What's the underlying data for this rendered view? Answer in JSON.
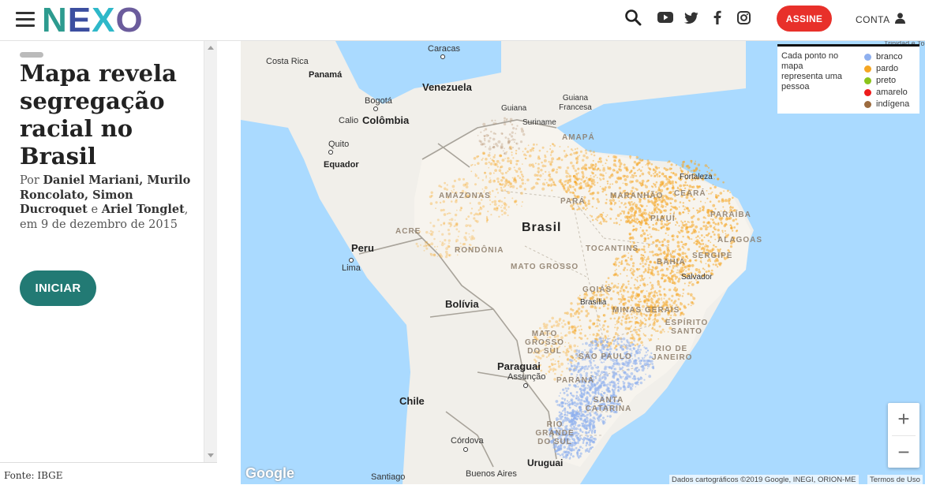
{
  "header": {
    "logo_letters": [
      "N",
      "E",
      "X",
      "O"
    ],
    "logo_colors": [
      "#2d9b8f",
      "#3c4fa0",
      "#2eb8c9",
      "#6b5c9c"
    ],
    "assine_label": "ASSINE",
    "conta_label": "CONTA",
    "icons": [
      "menu-icon",
      "search-icon",
      "youtube-icon",
      "twitter-icon",
      "facebook-icon",
      "instagram-icon",
      "user-icon"
    ]
  },
  "article": {
    "title": "Mapa revela segregação racial no Brasil",
    "byline_prefix": "Por ",
    "authors_1": "Daniel Mariani, Murilo Roncolato, Simon Ducroquet",
    "byline_and": " e ",
    "authors_2": "Ariel Tonglet",
    "date_text": ", em 9 de dezembro de 2015",
    "cta_label": "INICIAR",
    "source": "Fonte: IBGE"
  },
  "legend": {
    "description": "Cada ponto no mapa representa uma pessoa",
    "items": [
      {
        "label": "branco",
        "color": "#8fb0ef"
      },
      {
        "label": "pardo",
        "color": "#f5a623"
      },
      {
        "label": "preto",
        "color": "#8bc41b"
      },
      {
        "label": "amarelo",
        "color": "#ee1c1c"
      },
      {
        "label": "indígena",
        "color": "#9c6b3f"
      }
    ]
  },
  "map": {
    "countries": [
      "Venezuela",
      "Colômbia",
      "Equador",
      "Peru",
      "Bolívia",
      "Paraguai",
      "Chile",
      "Uruguai"
    ],
    "cities": [
      "Costa Rica",
      "Panamá",
      "Caracas",
      "Bogotá",
      "Calio",
      "Quito",
      "Lima",
      "Assunção",
      "Córdova",
      "Santiago",
      "Buenos Aires",
      "Guiana",
      "Guiana Francesa",
      "Suriname",
      "Fortaleza",
      "Salvador",
      "Brasília"
    ],
    "country_label": "Brasil",
    "states": [
      "AMAPÁ",
      "AMAZONAS",
      "PARÁ",
      "MARANHÃO",
      "CEARÁ",
      "PIAUÍ",
      "PARAÍBA",
      "ALAGOAS",
      "SERGIPE",
      "BAHIA",
      "TOCANTINS",
      "ACRE",
      "RONDÔNIA",
      "MATO GROSSO",
      "GOIÁS",
      "MINAS GERAIS",
      "ESPÍRITO SANTO",
      "RIO DE JANEIRO",
      "SÃO PAULO",
      "MATO GROSSO DO SUL",
      "PARANÁ",
      "SANTA CATARINA",
      "RIO GRANDE DO SUL"
    ],
    "zoom_in": "+",
    "zoom_out": "−",
    "google": "Google",
    "attribution": "Dados cartográficos ©2019 Google, INEGI, ORION-ME",
    "terms": "Termos de Uso",
    "corner_label": "Trinidad e Tobago"
  }
}
